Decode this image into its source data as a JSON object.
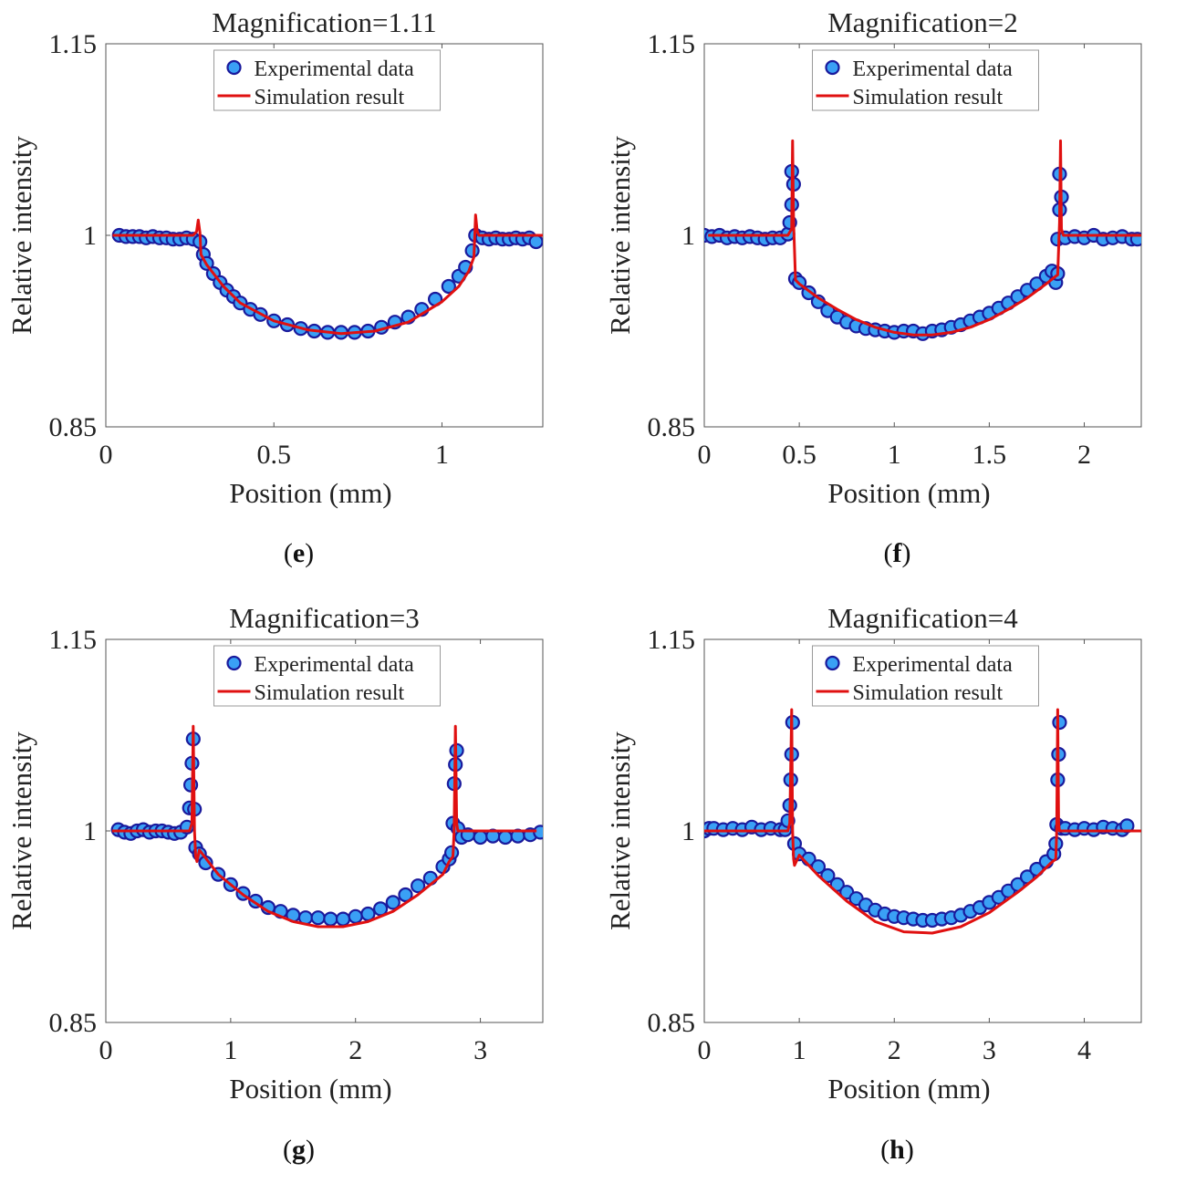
{
  "figure": {
    "captions": [
      "e",
      "f",
      "g",
      "h"
    ]
  },
  "colors": {
    "marker_fill": "#3aa0f5",
    "marker_edge": "#1a1a9c",
    "simulation_line": "#e01010",
    "axis": "#555555"
  },
  "chart_data": [
    {
      "type": "line",
      "title": "Magnification=1.11",
      "xlabel": "Position (mm)",
      "ylabel": "Relative intensity",
      "xlim": [
        0,
        1.3
      ],
      "ylim": [
        0.85,
        1.15
      ],
      "xticks": [
        0,
        0.5,
        1
      ],
      "xtick_labels": [
        "0",
        "0.5",
        "1"
      ],
      "yticks": [
        0.85,
        1,
        1.15
      ],
      "ytick_labels": [
        "0.85",
        "1",
        "1.15"
      ],
      "legend": {
        "position": "top-center",
        "entries": [
          "Experimental data",
          "Simulation result"
        ]
      },
      "grid": false,
      "series": [
        {
          "name": "Experimental data",
          "kind": "scatter",
          "x": [
            0.04,
            0.06,
            0.08,
            0.1,
            0.12,
            0.14,
            0.16,
            0.18,
            0.2,
            0.22,
            0.24,
            0.26,
            0.28,
            0.29,
            0.3,
            0.32,
            0.34,
            0.36,
            0.38,
            0.4,
            0.43,
            0.46,
            0.5,
            0.54,
            0.58,
            0.62,
            0.66,
            0.7,
            0.74,
            0.78,
            0.82,
            0.86,
            0.9,
            0.94,
            0.98,
            1.02,
            1.05,
            1.07,
            1.09,
            1.1,
            1.12,
            1.14,
            1.16,
            1.18,
            1.2,
            1.22,
            1.24,
            1.26,
            1.28
          ],
          "y": [
            1.0,
            0.999,
            0.999,
            0.999,
            0.998,
            0.999,
            0.998,
            0.998,
            0.997,
            0.997,
            0.998,
            0.997,
            0.995,
            0.985,
            0.978,
            0.97,
            0.963,
            0.957,
            0.952,
            0.947,
            0.942,
            0.938,
            0.933,
            0.93,
            0.927,
            0.925,
            0.924,
            0.924,
            0.924,
            0.925,
            0.928,
            0.932,
            0.936,
            0.942,
            0.95,
            0.96,
            0.968,
            0.975,
            0.988,
            1.0,
            0.998,
            0.997,
            0.998,
            0.997,
            0.997,
            0.998,
            0.997,
            0.998,
            0.995
          ]
        },
        {
          "name": "Simulation result",
          "kind": "line",
          "x": [
            0.02,
            0.1,
            0.2,
            0.26,
            0.27,
            0.275,
            0.28,
            0.283,
            0.3,
            0.35,
            0.4,
            0.5,
            0.6,
            0.7,
            0.8,
            0.9,
            1.0,
            1.05,
            1.08,
            1.095,
            1.1,
            1.105,
            1.11,
            1.15,
            1.2,
            1.3
          ],
          "y": [
            1.0,
            1.0,
            1.0,
            1.0,
            1.003,
            1.012,
            1.002,
            0.985,
            0.977,
            0.96,
            0.947,
            0.933,
            0.926,
            0.923,
            0.925,
            0.932,
            0.948,
            0.96,
            0.972,
            0.983,
            1.016,
            1.003,
            1.0,
            1.0,
            1.0,
            1.0
          ]
        }
      ]
    },
    {
      "type": "line",
      "title": "Magnification=2",
      "xlabel": "Position (mm)",
      "ylabel": "Relative intensity",
      "xlim": [
        0,
        2.3
      ],
      "ylim": [
        0.85,
        1.15
      ],
      "xticks": [
        0,
        0.5,
        1,
        1.5,
        2
      ],
      "xtick_labels": [
        "0",
        "0.5",
        "1",
        "1.5",
        "2"
      ],
      "yticks": [
        0.85,
        1,
        1.15
      ],
      "ytick_labels": [
        "0.85",
        "1",
        "1.15"
      ],
      "legend": {
        "position": "top-center",
        "entries": [
          "Experimental data",
          "Simulation result"
        ]
      },
      "grid": false,
      "series": [
        {
          "name": "Experimental data",
          "kind": "scatter",
          "x": [
            0.0,
            0.04,
            0.08,
            0.12,
            0.16,
            0.2,
            0.24,
            0.28,
            0.32,
            0.36,
            0.4,
            0.44,
            0.45,
            0.46,
            0.46,
            0.47,
            0.48,
            0.5,
            0.55,
            0.6,
            0.65,
            0.7,
            0.75,
            0.8,
            0.85,
            0.9,
            0.95,
            1.0,
            1.05,
            1.1,
            1.15,
            1.2,
            1.25,
            1.3,
            1.35,
            1.4,
            1.45,
            1.5,
            1.55,
            1.6,
            1.65,
            1.7,
            1.75,
            1.8,
            1.83,
            1.85,
            1.86,
            1.86,
            1.87,
            1.87,
            1.88,
            1.9,
            1.95,
            2.0,
            2.05,
            2.1,
            2.15,
            2.2,
            2.25,
            2.28
          ],
          "y": [
            1.0,
            0.999,
            1.0,
            0.998,
            0.999,
            0.998,
            0.999,
            0.998,
            0.997,
            0.998,
            0.998,
            1.001,
            1.01,
            1.024,
            1.05,
            1.04,
            0.966,
            0.963,
            0.955,
            0.948,
            0.941,
            0.936,
            0.932,
            0.929,
            0.927,
            0.926,
            0.925,
            0.924,
            0.925,
            0.925,
            0.923,
            0.925,
            0.926,
            0.928,
            0.93,
            0.933,
            0.936,
            0.939,
            0.943,
            0.947,
            0.952,
            0.957,
            0.962,
            0.968,
            0.972,
            0.963,
            0.97,
            0.997,
            1.02,
            1.048,
            1.03,
            0.998,
            0.999,
            0.998,
            1.0,
            0.997,
            0.998,
            0.999,
            0.997,
            0.997
          ]
        },
        {
          "name": "Simulation result",
          "kind": "line",
          "x": [
            0.02,
            0.2,
            0.4,
            0.44,
            0.46,
            0.465,
            0.47,
            0.48,
            0.5,
            0.6,
            0.7,
            0.8,
            0.9,
            1.0,
            1.1,
            1.2,
            1.3,
            1.4,
            1.5,
            1.6,
            1.7,
            1.8,
            1.85,
            1.86,
            1.87,
            1.875,
            1.88,
            1.89,
            1.95,
            2.1,
            2.3
          ],
          "y": [
            1.0,
            1.0,
            1.0,
            1.0,
            1.005,
            1.074,
            1.01,
            0.965,
            0.962,
            0.951,
            0.942,
            0.934,
            0.928,
            0.924,
            0.922,
            0.922,
            0.924,
            0.928,
            0.934,
            0.942,
            0.951,
            0.962,
            0.968,
            0.969,
            1.01,
            1.074,
            1.005,
            1.0,
            1.0,
            1.0,
            1.0
          ]
        }
      ]
    },
    {
      "type": "line",
      "title": "Magnification=3",
      "xlabel": "Position (mm)",
      "ylabel": "Relative intensity",
      "xlim": [
        0,
        3.5
      ],
      "ylim": [
        0.85,
        1.15
      ],
      "xticks": [
        0,
        1,
        2,
        3
      ],
      "xtick_labels": [
        "0",
        "1",
        "2",
        "3"
      ],
      "yticks": [
        0.85,
        1,
        1.15
      ],
      "ytick_labels": [
        "0.85",
        "1",
        "1.15"
      ],
      "legend": {
        "position": "top-center",
        "entries": [
          "Experimental data",
          "Simulation result"
        ]
      },
      "grid": false,
      "series": [
        {
          "name": "Experimental data",
          "kind": "scatter",
          "x": [
            0.1,
            0.15,
            0.2,
            0.25,
            0.3,
            0.35,
            0.4,
            0.45,
            0.5,
            0.55,
            0.6,
            0.65,
            0.67,
            0.68,
            0.69,
            0.7,
            0.71,
            0.72,
            0.75,
            0.8,
            0.9,
            1.0,
            1.1,
            1.2,
            1.3,
            1.4,
            1.5,
            1.6,
            1.7,
            1.8,
            1.9,
            2.0,
            2.1,
            2.2,
            2.3,
            2.4,
            2.5,
            2.6,
            2.7,
            2.75,
            2.77,
            2.78,
            2.79,
            2.8,
            2.81,
            2.82,
            2.85,
            2.9,
            3.0,
            3.1,
            3.2,
            3.3,
            3.4,
            3.48
          ],
          "y": [
            1.001,
            0.999,
            0.998,
            1.0,
            1.001,
            0.999,
            1.0,
            1.0,
            0.999,
            0.998,
            0.999,
            1.003,
            1.018,
            1.036,
            1.053,
            1.072,
            1.017,
            0.987,
            0.982,
            0.975,
            0.966,
            0.958,
            0.951,
            0.945,
            0.94,
            0.937,
            0.934,
            0.932,
            0.932,
            0.931,
            0.931,
            0.933,
            0.935,
            0.939,
            0.944,
            0.95,
            0.957,
            0.963,
            0.972,
            0.978,
            0.983,
            1.006,
            1.037,
            1.052,
            1.063,
            1.002,
            0.995,
            0.997,
            0.995,
            0.996,
            0.995,
            0.996,
            0.997,
            0.999
          ]
        },
        {
          "name": "Simulation result",
          "kind": "line",
          "x": [
            0.05,
            0.3,
            0.6,
            0.67,
            0.69,
            0.7,
            0.71,
            0.72,
            0.73,
            0.75,
            0.9,
            1.1,
            1.3,
            1.5,
            1.7,
            1.9,
            2.1,
            2.3,
            2.5,
            2.6,
            2.7,
            2.75,
            2.78,
            2.79,
            2.8,
            2.81,
            2.82,
            2.85,
            3.0,
            3.2,
            3.45
          ],
          "y": [
            1.0,
            1.0,
            1.0,
            1.0,
            1.006,
            1.082,
            1.0,
            0.98,
            0.976,
            0.985,
            0.966,
            0.95,
            0.937,
            0.929,
            0.925,
            0.925,
            0.929,
            0.937,
            0.95,
            0.958,
            0.966,
            0.976,
            0.98,
            1.0,
            1.082,
            1.006,
            1.0,
            1.0,
            1.0,
            1.0,
            1.0
          ]
        }
      ]
    },
    {
      "type": "line",
      "title": "Magnification=4",
      "xlabel": "Position (mm)",
      "ylabel": "Relative intensity",
      "xlim": [
        0,
        4.6
      ],
      "ylim": [
        0.85,
        1.15
      ],
      "xticks": [
        0,
        1,
        2,
        3,
        4
      ],
      "xtick_labels": [
        "0",
        "1",
        "2",
        "3",
        "4"
      ],
      "yticks": [
        0.85,
        1,
        1.15
      ],
      "ytick_labels": [
        "0.85",
        "1",
        "1.15"
      ],
      "legend": {
        "position": "top-center",
        "entries": [
          "Experimental data",
          "Simulation result"
        ]
      },
      "grid": false,
      "series": [
        {
          "name": "Experimental data",
          "kind": "scatter",
          "x": [
            0.0,
            0.05,
            0.1,
            0.2,
            0.3,
            0.4,
            0.5,
            0.6,
            0.7,
            0.8,
            0.85,
            0.88,
            0.9,
            0.91,
            0.92,
            0.93,
            0.95,
            1.0,
            1.1,
            1.2,
            1.3,
            1.4,
            1.5,
            1.6,
            1.7,
            1.8,
            1.9,
            2.0,
            2.1,
            2.2,
            2.3,
            2.4,
            2.5,
            2.6,
            2.7,
            2.8,
            2.9,
            3.0,
            3.1,
            3.2,
            3.3,
            3.4,
            3.5,
            3.6,
            3.68,
            3.7,
            3.71,
            3.72,
            3.73,
            3.74,
            3.76,
            3.8,
            3.9,
            4.0,
            4.1,
            4.2,
            4.3,
            4.4,
            4.45
          ],
          "y": [
            1.0,
            1.002,
            1.002,
            1.001,
            1.002,
            1.001,
            1.003,
            1.001,
            1.002,
            1.001,
            1.001,
            1.008,
            1.02,
            1.04,
            1.06,
            1.085,
            0.99,
            0.982,
            0.978,
            0.972,
            0.965,
            0.958,
            0.952,
            0.947,
            0.942,
            0.938,
            0.935,
            0.933,
            0.932,
            0.931,
            0.93,
            0.93,
            0.931,
            0.932,
            0.934,
            0.937,
            0.94,
            0.944,
            0.948,
            0.953,
            0.958,
            0.964,
            0.97,
            0.976,
            0.982,
            0.99,
            1.005,
            1.04,
            1.06,
            1.085,
            1.002,
            1.002,
            1.001,
            1.002,
            1.001,
            1.003,
            1.002,
            1.001,
            1.004
          ]
        },
        {
          "name": "Simulation result",
          "kind": "line",
          "x": [
            0.0,
            0.4,
            0.8,
            0.88,
            0.9,
            0.92,
            0.93,
            0.94,
            0.95,
            1.0,
            1.2,
            1.5,
            1.8,
            2.1,
            2.4,
            2.7,
            3.0,
            3.3,
            3.5,
            3.65,
            3.7,
            3.71,
            3.72,
            3.73,
            3.74,
            3.76,
            3.8,
            4.2,
            4.6
          ],
          "y": [
            1.0,
            1.0,
            1.0,
            1.0,
            1.006,
            1.095,
            1.0,
            0.978,
            0.973,
            0.981,
            0.965,
            0.945,
            0.929,
            0.921,
            0.92,
            0.925,
            0.936,
            0.952,
            0.964,
            0.975,
            0.978,
            1.0,
            1.095,
            1.006,
            1.0,
            1.0,
            1.0,
            1.0,
            1.0
          ]
        }
      ]
    }
  ]
}
